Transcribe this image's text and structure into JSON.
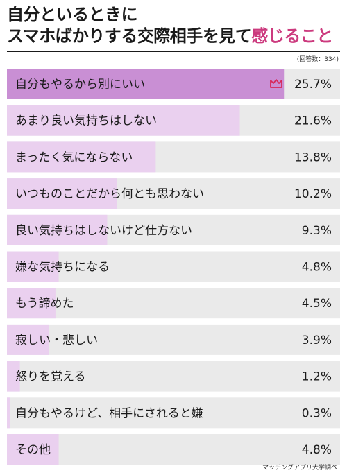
{
  "title": {
    "line1": "自分といるときに",
    "line2_plain": "スマホばかりする交際相手を見て",
    "line2_accent": "感じること"
  },
  "respondents": "(回答数：334)",
  "source": "マッチングアプリ大学調べ",
  "colors": {
    "track": "#eaeaea",
    "bar_top": "#c98fd4",
    "bar_rest": "#ead0ef",
    "accent": "#cc3a7e",
    "crown": "#d8285a"
  },
  "crown_icon": "crown-icon",
  "chart_data": {
    "type": "bar",
    "orientation": "horizontal",
    "categories": [
      "自分もやるから別にいい",
      "あまり良い気持ちはしない",
      "まったく気にならない",
      "いつものことだから何とも思わない",
      "良い気持ちはしないけど仕方ない",
      "嫌な気持ちになる",
      "もう諦めた",
      "寂しい・悲しい",
      "怒りを覚える",
      "自分もやるけど、相手にされると嫌",
      "その他"
    ],
    "values": [
      25.7,
      21.6,
      13.8,
      10.2,
      9.3,
      4.8,
      4.5,
      3.9,
      1.2,
      0.3,
      4.8
    ],
    "labels": [
      "25.7%",
      "21.6%",
      "13.8%",
      "10.2%",
      "9.3%",
      "4.8%",
      "4.5%",
      "3.9%",
      "1.2%",
      "0.3%",
      "4.8%"
    ],
    "xlim": [
      0,
      30.9
    ],
    "grid": false,
    "highlight_index": 0
  }
}
